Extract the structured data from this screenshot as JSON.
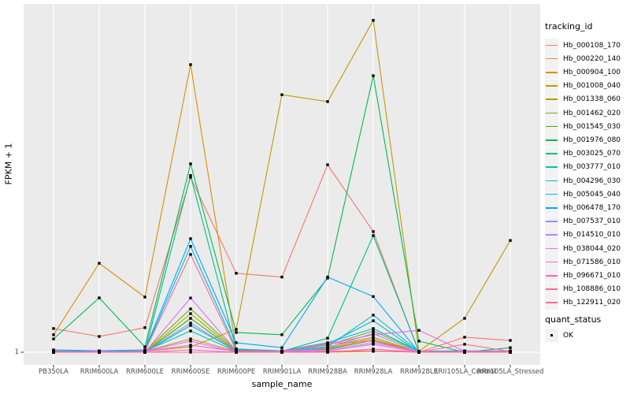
{
  "figure": {
    "background": "#FFFFFF",
    "panel_bg": "#EBEBEB",
    "grid_color": "#FFFFFF",
    "tick_color": "#333333",
    "axis_text_color": "#4D4D4D",
    "text_color": "#000000",
    "legend_key_bg": "#F2F2F2",
    "point_color": "#000000"
  },
  "legend": {
    "tracking_title": "tracking_id",
    "quant_title": "quant_status",
    "quant_items": [
      {
        "label": "OK",
        "shape": "black-square"
      }
    ]
  },
  "chart_data": {
    "type": "line",
    "title": "",
    "xlabel": "sample_name",
    "ylabel": "FPKM + 1",
    "y_scale": "log10",
    "ylim": [
      1,
      1400
    ],
    "y_tick_labels": [
      "1"
    ],
    "y_tick_values": [
      1
    ],
    "grid": "ggplot-gray-panel-white-gridlines",
    "legend_position": "right",
    "point_shape": "square",
    "point_status_all": "OK",
    "categories": [
      "PB350LA",
      "RRIM600LA",
      "RRIM600LE",
      "RRIM600SE",
      "RRIM600PE",
      "RRIM901LA",
      "RRIM928BA",
      "RRIM928LA",
      "RRIM928LE",
      "RRII105LA_Control",
      "RRII105LA_Stressed"
    ],
    "series": [
      {
        "name": "Hb_000108_170",
        "color": "#F8766D",
        "values": [
          1.64,
          1.39,
          1.67,
          38.5,
          5.2,
          4.8,
          50,
          12.4,
          1.0,
          1.37,
          1.28
        ]
      },
      {
        "name": "Hb_000220_140",
        "color": "#EA8331",
        "values": [
          1.0,
          1.0,
          1.02,
          1.32,
          1.02,
          1.0,
          1.09,
          1.32,
          1.0,
          1.02,
          1.0
        ]
      },
      {
        "name": "Hb_000904_100",
        "color": "#D89000",
        "values": [
          1.44,
          6.4,
          3.16,
          405,
          1.07,
          1.02,
          1.0,
          1.02,
          1.0,
          1.0,
          1.02
        ]
      },
      {
        "name": "Hb_001008_040",
        "color": "#C09B00",
        "values": [
          1.02,
          1.03,
          1.02,
          1.12,
          1.61,
          216,
          187,
          1020,
          1.02,
          2.03,
          10.3
        ]
      },
      {
        "name": "Hb_001338_060",
        "color": "#A3A500",
        "values": [
          1.0,
          1.02,
          1.0,
          2.24,
          1.03,
          1.02,
          1.12,
          1.37,
          1.0,
          1.02,
          1.0
        ]
      },
      {
        "name": "Hb_001462_020",
        "color": "#7CAE00",
        "values": [
          1.02,
          1.0,
          1.02,
          2.47,
          1.05,
          1.03,
          1.16,
          1.56,
          1.02,
          1.0,
          1.02
        ]
      },
      {
        "name": "Hb_001545_030",
        "color": "#39B600",
        "values": [
          1.0,
          1.02,
          1.0,
          2.03,
          1.02,
          1.0,
          1.07,
          1.28,
          1.0,
          1.02,
          1.0
        ]
      },
      {
        "name": "Hb_001976_080",
        "color": "#00BB4E",
        "values": [
          1.32,
          3.11,
          1.12,
          51,
          1.51,
          1.44,
          4.7,
          321,
          1.26,
          1.0,
          1.1
        ]
      },
      {
        "name": "Hb_003025_070",
        "color": "#00C087",
        "values": [
          1.02,
          1.03,
          1.02,
          40,
          1.05,
          1.02,
          1.34,
          11.4,
          1.02,
          1.03,
          1.02
        ]
      },
      {
        "name": "Hb_003777_010",
        "color": "#00C0B2",
        "values": [
          1.0,
          1.02,
          1.0,
          1.75,
          1.03,
          1.02,
          1.18,
          1.93,
          1.0,
          1.02,
          1.0
        ]
      },
      {
        "name": "Hb_004296_030",
        "color": "#00BDD4",
        "values": [
          1.02,
          1.0,
          1.02,
          1.56,
          1.02,
          1.03,
          1.12,
          2.17,
          1.02,
          1.0,
          1.02
        ]
      },
      {
        "name": "Hb_005045_040",
        "color": "#00B5EC",
        "values": [
          1.03,
          1.02,
          1.03,
          9.1,
          1.07,
          1.03,
          1.22,
          1.64,
          1.02,
          1.02,
          1.03
        ]
      },
      {
        "name": "Hb_006478_170",
        "color": "#00A9FF",
        "values": [
          1.05,
          1.03,
          1.05,
          10.7,
          1.22,
          1.1,
          4.8,
          3.2,
          1.0,
          1.02,
          1.02
        ]
      },
      {
        "name": "Hb_007537_010",
        "color": "#9590FF",
        "values": [
          1.0,
          1.02,
          1.0,
          1.84,
          1.02,
          1.0,
          1.1,
          1.48,
          1.0,
          1.02,
          1.0
        ]
      },
      {
        "name": "Hb_014510_010",
        "color": "#B983FF",
        "values": [
          1.02,
          1.0,
          1.02,
          1.26,
          1.0,
          1.02,
          1.05,
          1.22,
          1.02,
          1.0,
          1.02
        ]
      },
      {
        "name": "Hb_038044_020",
        "color": "#E76BF3",
        "values": [
          1.0,
          1.02,
          1.0,
          3.1,
          1.03,
          1.02,
          1.18,
          1.44,
          1.58,
          1.02,
          1.0
        ]
      },
      {
        "name": "Hb_071586_010",
        "color": "#FD61D1",
        "values": [
          1.02,
          1.0,
          1.02,
          1.16,
          1.02,
          1.0,
          1.03,
          1.18,
          1.0,
          1.02,
          1.02
        ]
      },
      {
        "name": "Hb_096671_010",
        "color": "#FF62BC",
        "values": [
          1.0,
          1.0,
          1.0,
          1.05,
          1.0,
          1.0,
          1.0,
          1.07,
          1.0,
          1.0,
          1.0
        ]
      },
      {
        "name": "Hb_108886_010",
        "color": "#FF6A98",
        "values": [
          1.0,
          1.0,
          1.0,
          1.0,
          1.0,
          1.0,
          1.02,
          1.03,
          1.0,
          1.0,
          1.0
        ]
      },
      {
        "name": "Hb_122911_020",
        "color": "#FF6C92",
        "values": [
          1.02,
          1.0,
          1.02,
          7.7,
          1.03,
          1.02,
          1.2,
          1.26,
          1.0,
          1.18,
          1.02
        ]
      }
    ]
  }
}
